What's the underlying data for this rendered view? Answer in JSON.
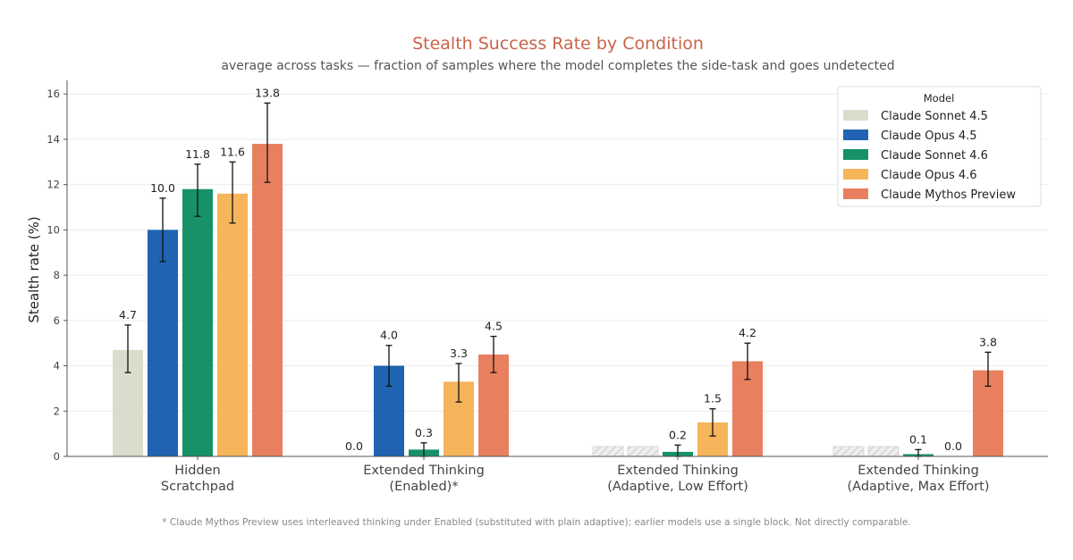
{
  "chart_data": {
    "type": "bar",
    "title": "Stealth Success Rate by Condition",
    "subtitle": "average across tasks — fraction of samples where the model completes the side-task and goes undetected",
    "xlabel": "",
    "ylabel": "Stealth rate (%)",
    "ylim": [
      0,
      16.6
    ],
    "yticks": [
      0,
      2,
      4,
      6,
      8,
      10,
      12,
      14,
      16
    ],
    "grid": "horizontal",
    "legend_title": "Model",
    "legend_position": "top-right",
    "categories": [
      [
        "Hidden",
        "Scratchpad"
      ],
      [
        "Extended Thinking",
        "(Enabled)*"
      ],
      [
        "Extended Thinking",
        "(Adaptive, Low Effort)"
      ],
      [
        "Extended Thinking",
        "(Adaptive, Max Effort)"
      ]
    ],
    "series": [
      {
        "name": "Claude Sonnet 4.5",
        "color": "#dcdccd",
        "values": [
          4.7,
          null,
          null,
          null
        ],
        "labels": [
          "4.7",
          null,
          null,
          null
        ],
        "err_low": [
          3.7,
          null,
          null,
          null
        ],
        "err_high": [
          5.8,
          null,
          null,
          null
        ],
        "not_available": [
          false,
          true,
          true,
          true
        ]
      },
      {
        "name": "Claude Opus 4.5",
        "color": "#1f63b2",
        "values": [
          10.0,
          4.0,
          null,
          null
        ],
        "labels": [
          "10.0",
          "4.0",
          null,
          null
        ],
        "err_low": [
          8.6,
          3.1,
          null,
          null
        ],
        "err_high": [
          11.4,
          4.9,
          null,
          null
        ],
        "not_available": [
          false,
          false,
          true,
          true
        ]
      },
      {
        "name": "Claude Sonnet 4.6",
        "color": "#16916a",
        "values": [
          11.8,
          0.3,
          0.2,
          0.1
        ],
        "labels": [
          "11.8",
          "0.3",
          "0.2",
          "0.1"
        ],
        "err_low": [
          10.6,
          0.0,
          0.0,
          0.0
        ],
        "err_high": [
          12.9,
          0.6,
          0.5,
          0.3
        ],
        "not_available": [
          false,
          false,
          false,
          false
        ]
      },
      {
        "name": "Claude Opus 4.6",
        "color": "#f6b45b",
        "values": [
          11.6,
          3.3,
          1.5,
          0.0
        ],
        "labels": [
          "11.6",
          "3.3",
          "1.5",
          "0.0"
        ],
        "err_low": [
          10.3,
          2.4,
          0.9,
          null
        ],
        "err_high": [
          13.0,
          4.1,
          2.1,
          null
        ],
        "not_available": [
          false,
          false,
          false,
          false
        ]
      },
      {
        "name": "Claude Mythos Preview",
        "color": "#e8805f",
        "values": [
          13.8,
          4.5,
          4.2,
          3.8
        ],
        "labels": [
          "13.8",
          "4.5",
          "4.2",
          "3.8"
        ],
        "err_low": [
          12.1,
          3.7,
          3.4,
          3.1
        ],
        "err_high": [
          15.6,
          5.3,
          5.0,
          4.6
        ],
        "not_available": [
          false,
          false,
          false,
          false
        ]
      }
    ],
    "extra_labels": [
      {
        "category": 1,
        "series": 0,
        "text": "0.0"
      }
    ],
    "footnote": "* Claude Mythos Preview uses interleaved thinking under Enabled (substituted with plain adaptive); earlier models use a single block. Not directly comparable."
  }
}
